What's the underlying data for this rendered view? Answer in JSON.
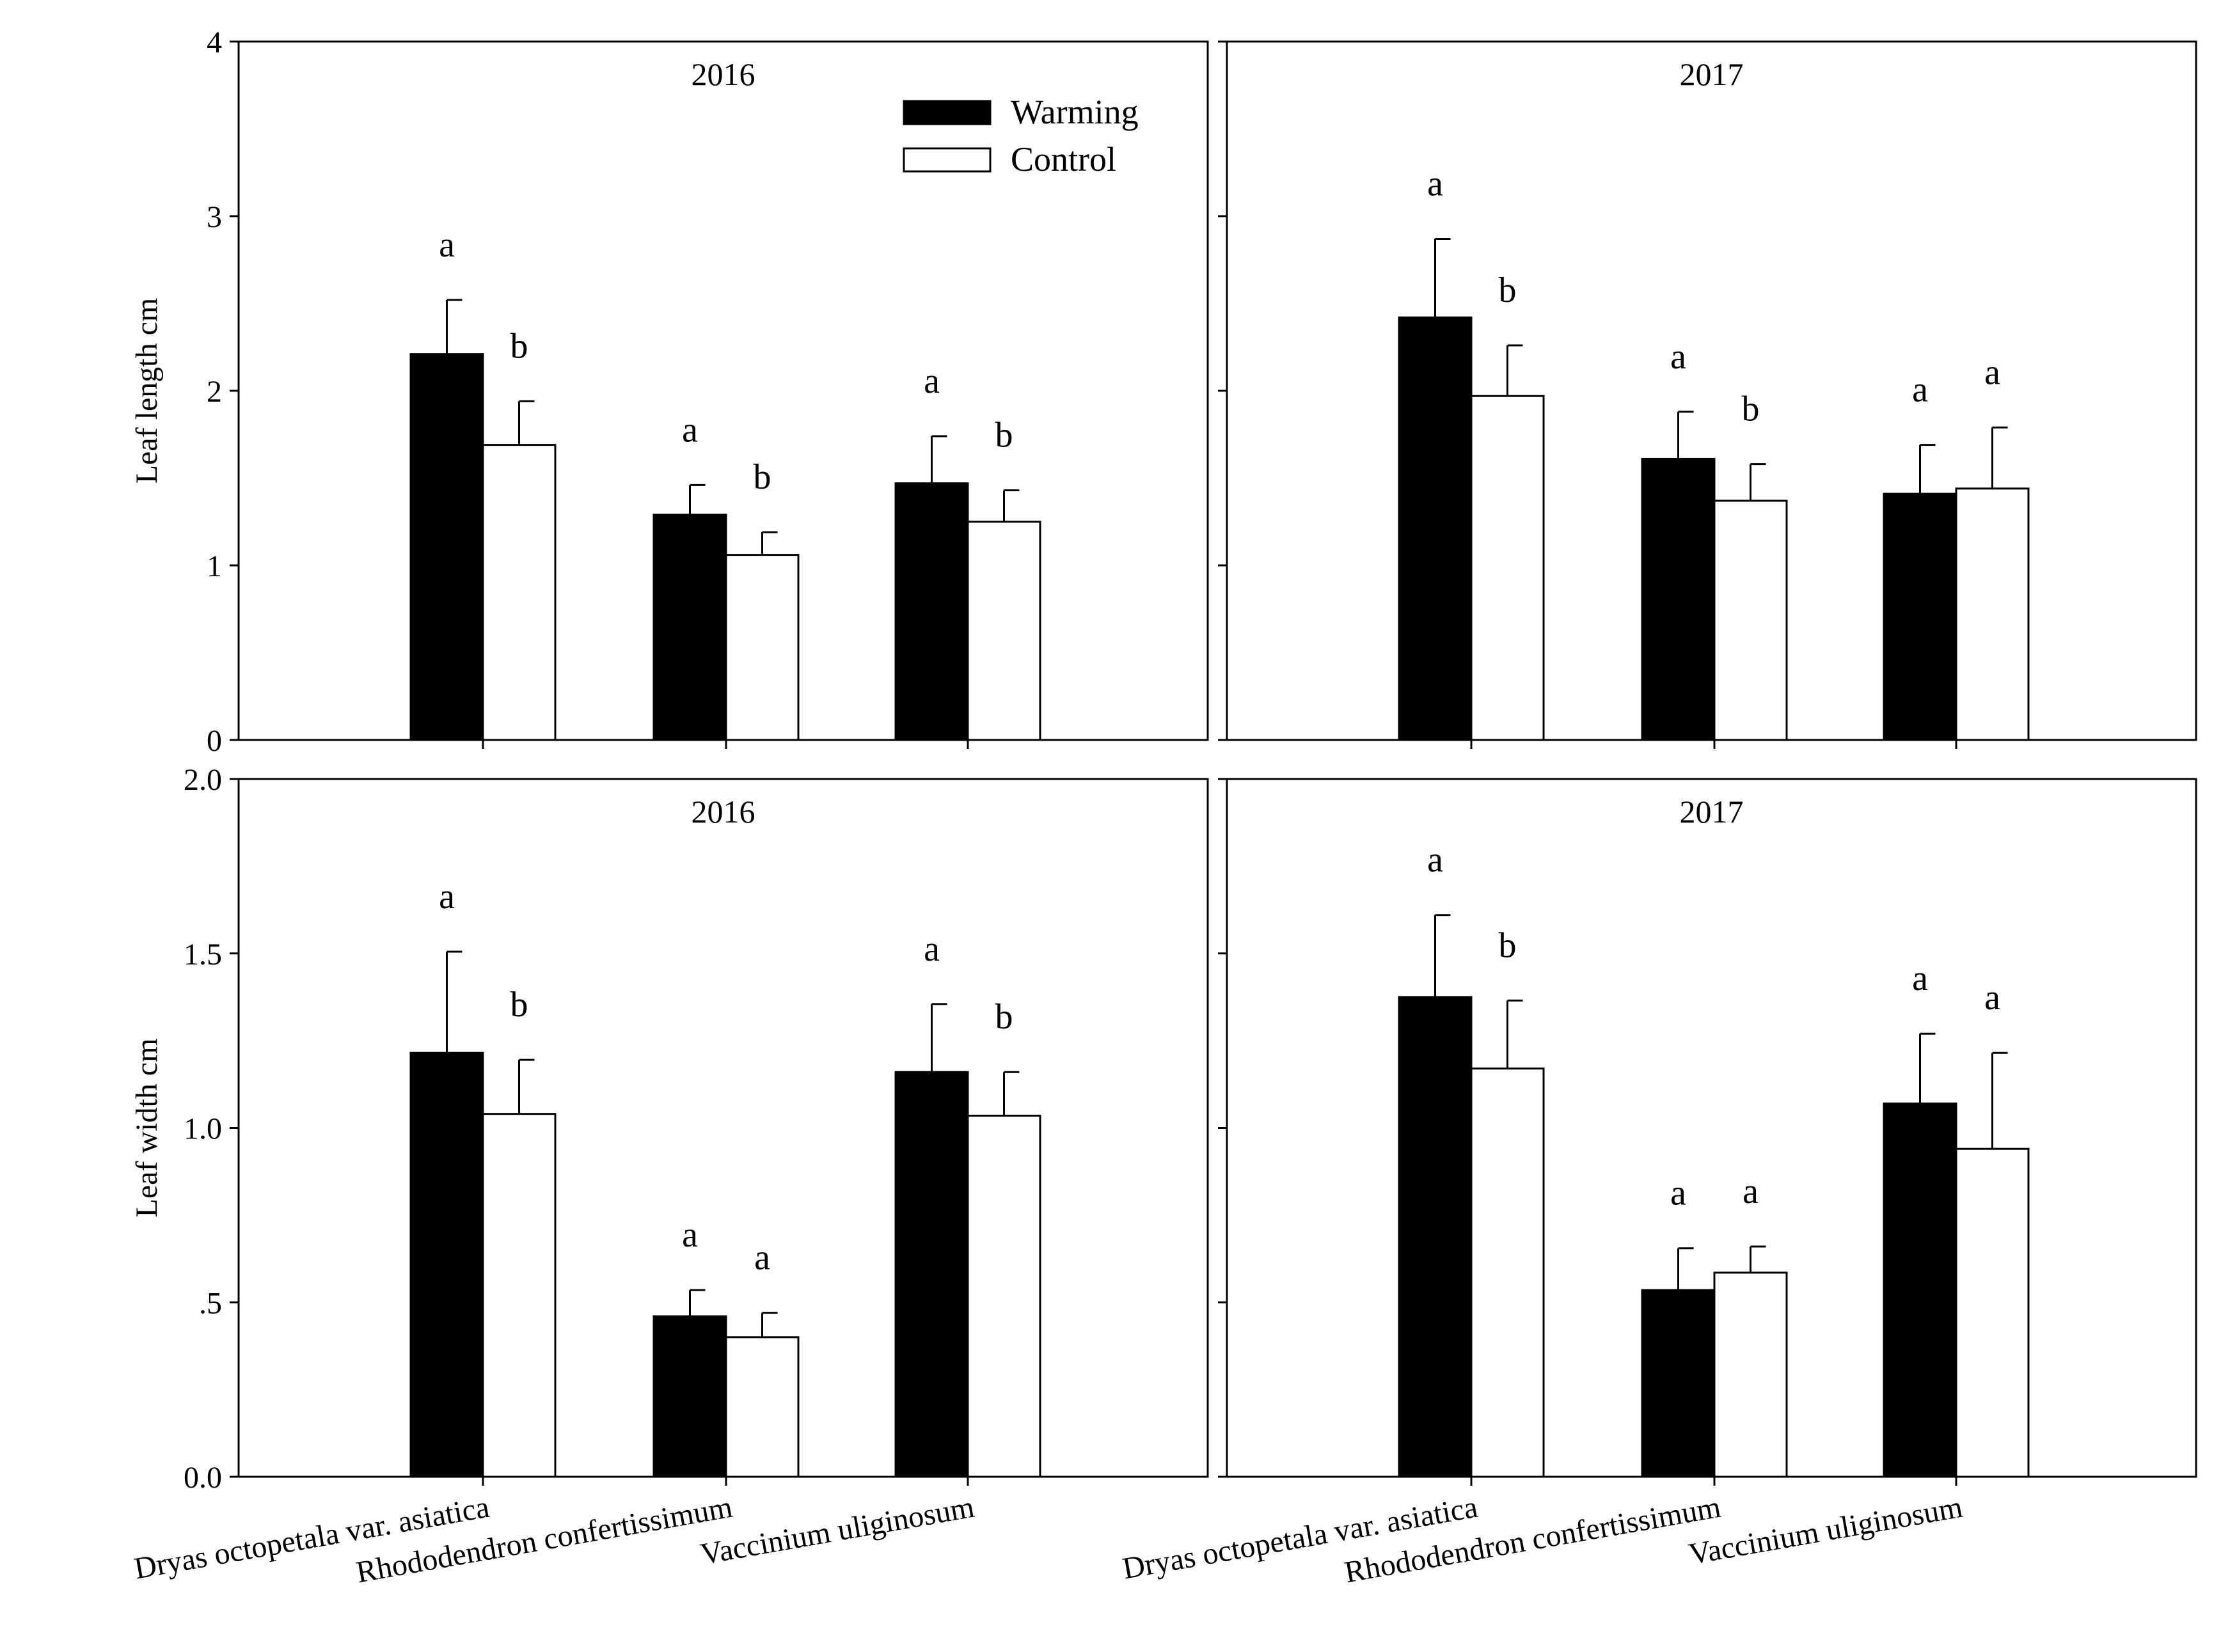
{
  "chart_data": [
    {
      "type": "bar",
      "panel_title": "2016",
      "ylabel": "Leaf length cm",
      "ylim": [
        0,
        4
      ],
      "yticks": [
        "0",
        "1",
        "2",
        "3",
        "4"
      ],
      "categories": [
        "Dryas octopetala var. asiatica",
        "Rhododendron confertissimum",
        "Vaccinium uliginosum"
      ],
      "series": [
        {
          "name": "Warming",
          "values": [
            2.21,
            1.29,
            1.47
          ],
          "errors": [
            0.31,
            0.17,
            0.27
          ],
          "letters": [
            "a",
            "a",
            "a"
          ]
        },
        {
          "name": "Control",
          "values": [
            1.69,
            1.06,
            1.25
          ],
          "errors": [
            0.25,
            0.13,
            0.18
          ],
          "letters": [
            "b",
            "b",
            "b"
          ]
        }
      ]
    },
    {
      "type": "bar",
      "panel_title": "2017",
      "ylabel": "",
      "ylim": [
        0,
        4
      ],
      "yticks": [],
      "categories": [
        "Dryas octopetala var. asiatica",
        "Rhododendron confertissimum",
        "Vaccinium uliginosum"
      ],
      "series": [
        {
          "name": "Warming",
          "values": [
            2.42,
            1.61,
            1.41
          ],
          "errors": [
            0.45,
            0.27,
            0.28
          ],
          "letters": [
            "a",
            "a",
            "a"
          ]
        },
        {
          "name": "Control",
          "values": [
            1.97,
            1.37,
            1.44
          ],
          "errors": [
            0.29,
            0.21,
            0.35
          ],
          "letters": [
            "b",
            "b",
            "a"
          ]
        }
      ]
    },
    {
      "type": "bar",
      "panel_title": "2016",
      "ylabel": "Leaf width cm",
      "ylim": [
        0,
        2
      ],
      "yticks": [
        "0.0",
        ".5",
        "1.0",
        "1.5",
        "2.0"
      ],
      "categories": [
        "Dryas octopetala var. asiatica",
        "Rhododendron confertissimum",
        "Vaccinium uliginosum"
      ],
      "series": [
        {
          "name": "Warming",
          "values": [
            1.215,
            0.46,
            1.16
          ],
          "errors": [
            0.29,
            0.075,
            0.195
          ],
          "letters": [
            "a",
            "a",
            "a"
          ]
        },
        {
          "name": "Control",
          "values": [
            1.04,
            0.4,
            1.035
          ],
          "errors": [
            0.155,
            0.07,
            0.125
          ],
          "letters": [
            "b",
            "a",
            "b"
          ]
        }
      ]
    },
    {
      "type": "bar",
      "panel_title": "2017",
      "ylabel": "",
      "ylim": [
        0,
        2
      ],
      "yticks": [],
      "categories": [
        "Dryas octopetala var. asiatica",
        "Rhododendron confertissimum",
        "Vaccinium uliginosum"
      ],
      "series": [
        {
          "name": "Warming",
          "values": [
            1.375,
            0.535,
            1.07
          ],
          "errors": [
            0.235,
            0.12,
            0.2
          ],
          "letters": [
            "a",
            "a",
            "a"
          ]
        },
        {
          "name": "Control",
          "values": [
            1.17,
            0.585,
            0.94
          ],
          "errors": [
            0.195,
            0.075,
            0.275
          ],
          "letters": [
            "b",
            "a",
            "a"
          ]
        }
      ]
    }
  ],
  "legend": {
    "items": [
      "Warming",
      "Control"
    ],
    "placement": "top-right of first panel"
  },
  "colors": {
    "Warming": "#000000",
    "Control": "#ffffff",
    "stroke": "#000000"
  }
}
